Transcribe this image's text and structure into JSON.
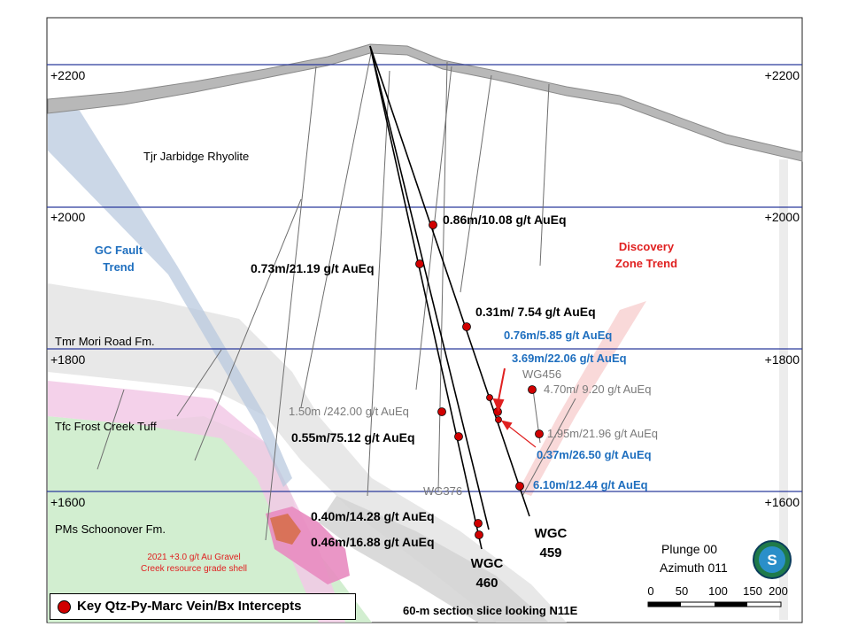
{
  "elevations": [
    "+2200",
    "+2000",
    "+1800",
    "+1600"
  ],
  "formations": {
    "jarbidge": "Tjr Jarbidge Rhyolite",
    "mori": "Tmr Mori Road Fm.",
    "frost": "Tfc Frost Creek Tuff",
    "schoonover": "PMs Schoonover Fm."
  },
  "trends": {
    "gc_fault": [
      "GC Fault",
      "Trend"
    ],
    "discovery": [
      "Discovery",
      "Zone Trend"
    ]
  },
  "intercepts": {
    "i1": "0.86m/10.08 g/t AuEq",
    "i2": "0.73m/21.19 g/t AuEq",
    "i3": "0.31m/ 7.54 g/t AuEq",
    "i4": "0.76m/5.85 g/t AuEq",
    "i5": "3.69m/22.06 g/t AuEq",
    "i6": "4.70m/ 9.20 g/t AuEq",
    "i7": "1.50m /242.00 g/t AuEq",
    "i8": "0.55m/75.12 g/t AuEq",
    "i9": "1.95m/21.96 g/t AuEq",
    "i10": "0.37m/26.50 g/t AuEq",
    "i11": "6.10m/12.44 g/t AuEq",
    "i12": "0.40m/14.28 g/t AuEq",
    "i13": "0.46m/16.88 g/t AuEq"
  },
  "holes": {
    "wg456": "WG456",
    "wg376": "WG376",
    "wgc459": [
      "WGC",
      "459"
    ],
    "wgc460": [
      "WGC",
      "460"
    ]
  },
  "resource_shell": [
    "2021 +3.0 g/t Au Gravel",
    "Creek resource grade shell"
  ],
  "orientation": {
    "plunge": "Plunge 00",
    "azimuth": "Azimuth 011"
  },
  "scale_labels": [
    "0",
    "50",
    "100",
    "150",
    "200"
  ],
  "north_icon_letter": "S",
  "section_caption": "60-m section slice looking N11E",
  "legend_label": "Key Qtz-Py-Marc Vein/Bx Intercepts",
  "colors": {
    "intercept": "#d00000",
    "blue_text": "#1f6fbf",
    "red_text": "#e02020",
    "grey_text": "#7a7a7a",
    "elev_line": "#2b3a9c"
  }
}
